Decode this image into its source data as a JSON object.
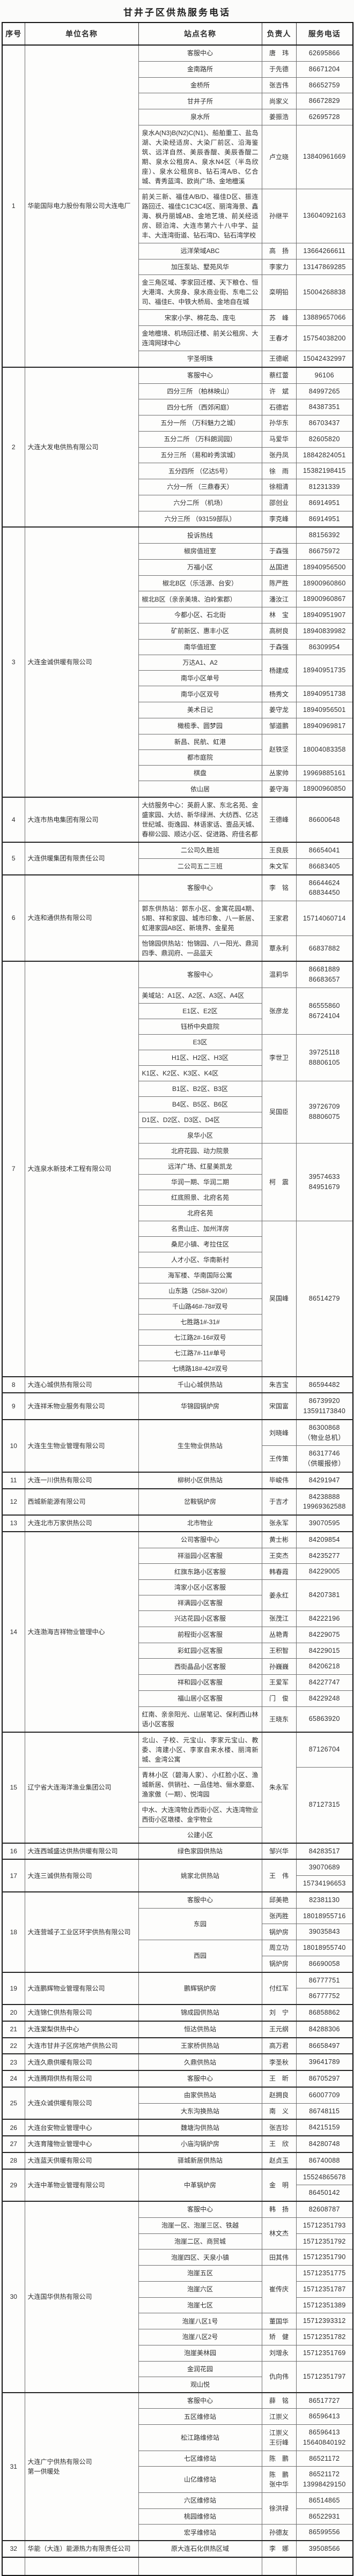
{
  "title": "甘井子区供热服务电话",
  "table": {
    "headers": [
      "序号",
      "单位名称",
      "站点名称",
      "负责人",
      "服务电话"
    ],
    "companies": [
      {
        "no": "1",
        "name": "华能国际电力股份有限公司大连电厂",
        "lines": [
          {
            "station": "客服中心",
            "person": "唐　玮",
            "phone": "62695866"
          },
          {
            "station": "金南路所",
            "person": "于先德",
            "phone": "86671204"
          },
          {
            "station": "金桥所",
            "person": "张吉伟",
            "phone": "86652759"
          },
          {
            "station": "甘井子所",
            "person": "尚家义",
            "phone": "86672829"
          },
          {
            "station": "泉水所",
            "person": "姜振浩",
            "phone": "62695728"
          },
          {
            "station": "泉水A(N3)B(N2)C(N1)、船舶重工、盐岛湖、大染经适房、大染厂前区、沿海鉴筑、远洋自然、美辰香醍、美辰香醍二期、泉水公租房A、泉水N4区（半岛欣座）、泉水公租房B、钻石湾A/B、亿合城、青秀蓝湾、欧尚广场、金地檀溪",
            "person": "卢立晓",
            "phone": "13840961669"
          },
          {
            "station": "前关三新、福佳A/B/D、福佳D区、振连路回迁、福佳C1C3C4区、丽湾海景、鑫海、枫丹丽城AB、金地艺境、前关经适房、颐泊湾、大连市第六十八中学、益丰、大连湾街道、钻石湾D、钻石湾学校",
            "person": "孙继平",
            "phone": "13604092163"
          },
          {
            "station": "远洋荣域ABC",
            "person": "高　扬",
            "phone": "13664266611"
          },
          {
            "station": "加压泵站、墅苑风华",
            "person": "李家力",
            "phone": "13147869285"
          },
          {
            "station": "金三角区域、李家回迁楼、天下粮仓、恒大港湾、大房身、泉水商业街、东电二公司、福佳E、中铁大桥局、金地自在城",
            "person": "栾明铅",
            "phone": "15004268838"
          },
          {
            "station": "宋家小学、棉花岛、庞屯",
            "person": "苏　峰",
            "phone": "13889657066"
          },
          {
            "station": "金地檀境、机场回迁楼、前关公租房、大连湾网球中心",
            "person": "王春才",
            "phone": "15754038200"
          },
          {
            "station": "宇圣明珠",
            "person": "王德岷",
            "phone": "15042432997"
          }
        ]
      },
      {
        "no": "2",
        "name": "大连大发电供热有限公司",
        "lines": [
          {
            "station": "客服中心",
            "person": "蔡红蕾",
            "phone": "96106"
          },
          {
            "station": "四分三所 （柏林映山）",
            "person": "许　斌",
            "phone": "84997265"
          },
          {
            "station": "四分七所 （西郊闲庭）",
            "person": "石德岩",
            "phone": "84387351"
          },
          {
            "station": "五分一所 （万科魅力之城）",
            "person": "孙华东",
            "phone": "86703437"
          },
          {
            "station": "五分二所 （万科朗润园）",
            "person": "马爱华",
            "phone": "82605820"
          },
          {
            "station": "五分三所 （易和岭秀滨城）",
            "person": "张丹凤",
            "phone": "18842824051"
          },
          {
            "station": "五分四所 （亿达5号）",
            "person": "徐　雨",
            "phone": "15382198415"
          },
          {
            "station": "六分一所 （三鼎春天）",
            "person": "徐相清",
            "phone": "81231339"
          },
          {
            "station": "六分二所 （机场）",
            "person": "邵创业",
            "phone": "86914951"
          },
          {
            "station": "六分三所 （93159部队）",
            "person": "李克峰",
            "phone": "86914951"
          }
        ]
      },
      {
        "no": "3",
        "name": "大连金诚供暖有限公司",
        "lines": [
          {
            "station": "投诉热线",
            "person": "",
            "phone": "88156392"
          },
          {
            "station": "椒房值班室",
            "person": "于森强",
            "phone": "86675972"
          },
          {
            "station": "万福小区",
            "person": "丛国进",
            "phone": "18940956500"
          },
          {
            "station": "椒北B区（乐活源、台安）",
            "person": "陈严胜",
            "phone": "18900960860"
          },
          {
            "station": "椒北B区（亲亲美境、泊岭紫郡）",
            "person": "潘汝江",
            "phone": "18900960867"
          },
          {
            "station": "今都小区、石北街",
            "person": "林　宝",
            "phone": "18940951907"
          },
          {
            "station": "矿前新区、惠丰小区",
            "person": "高树良",
            "phone": "18940839982"
          },
          {
            "station": "南华值班室",
            "person": "于森强",
            "phone": "86309954"
          },
          {
            "station": "万达A1、A2",
            "person": "杨建成",
            "pspan": 2,
            "phone": "18940951735",
            "tspan": 2
          },
          {
            "station": "南华小区单号"
          },
          {
            "station": "南华小区双号",
            "person": "杨秀文",
            "phone": "18940951738"
          },
          {
            "station": "美术日记",
            "person": "姜守龙",
            "phone": "18940956501"
          },
          {
            "station": "橄榄季、圆梦园",
            "person": "邹道鹏",
            "phone": "18940969817"
          },
          {
            "station": "新昌、民航、虹港",
            "person": "赵铁坚",
            "pspan": 2,
            "phone": "18004083358",
            "tspan": 2
          },
          {
            "station": "都市庭院"
          },
          {
            "station": "棋盘",
            "person": "丛家帅",
            "phone": "19969885161"
          },
          {
            "station": "依山居",
            "person": "姜守海",
            "phone": "18900960850"
          }
        ]
      },
      {
        "no": "4",
        "name": "大连市热电集团有限公司",
        "lines": [
          {
            "station": "大纺服务中心：英蔚人家、东北名苑、金盛家园、大纺、新华绿洲、大纺西、亿达世纪城、街逸园、林语家话、壹品天城、春柳公园、顺达小区、促进路、府佳名都",
            "person": "王德峰",
            "phone": "86600648"
          }
        ]
      },
      {
        "no": "5",
        "name": "大连供暖集团有限责任公司",
        "lines": [
          {
            "station": "二公司久胜班",
            "person": "王良辰",
            "phone": "86654041"
          },
          {
            "station": "二公司五二三班",
            "person": "朱文军",
            "phone": "86683405"
          }
        ]
      },
      {
        "no": "6",
        "name": "大连和通供热有限公司",
        "lines": [
          {
            "station": "客服中心",
            "person": "李　铭",
            "phone": "86644624\n68834450"
          },
          {
            "station": "郭东供热站：郭东小区、金寓花园4期、5期、祥和家园、城市印象、八一新居、虹港家园AB区、新境界、金星苑",
            "person": "王家君",
            "phone": "15714060714"
          },
          {
            "station": "怡锦园供热站：怡锦园、八一阳光、鼎润四季、鼎润府、一品蓝天",
            "person": "覃永利",
            "phone": "66837882"
          }
        ]
      },
      {
        "no": "7",
        "name": "大连泉水新技术工程有限公司",
        "lines": [
          {
            "station": "客服中心",
            "person": "温莉华",
            "phone": "86681889\n86683657"
          },
          {
            "station": "美域站：A1区、A2区、A3区、A4区",
            "person": "张彦龙",
            "pspan": 3,
            "phone": "86555860\n86724104",
            "tspan": 3
          },
          {
            "station": "E1区、E2区"
          },
          {
            "station": "钰桥中央庭院"
          },
          {
            "station": "E3区",
            "person": "李世卫",
            "pspan": 3,
            "phone": "39725118\n88806105",
            "tspan": 3
          },
          {
            "station": "H1区、H2区、H3区"
          },
          {
            "station": "K1区、K2区、K3区、K4区"
          },
          {
            "station": "B1区、B2区、B3区",
            "person": "吴国臣",
            "pspan": 4,
            "phone": "39726709\n88806075",
            "tspan": 4
          },
          {
            "station": "B4区、B5区、B6区"
          },
          {
            "station": "D1区、D2区、D3区、D4区"
          },
          {
            "station": "泉华小区"
          },
          {
            "station": "北府花园、动力院景",
            "person": "柯　震",
            "pspan": 5,
            "phone": "39574633\n84951679",
            "tspan": 5
          },
          {
            "station": "远洋广场、红星美凯龙"
          },
          {
            "station": "华润一期、华润二期"
          },
          {
            "station": "红底照景、北府名苑"
          },
          {
            "station": "北府名苑"
          },
          {
            "station": "名贵山庄、加州洋房",
            "person": "吴国峰",
            "pspan": 10,
            "phone": "86514279",
            "tspan": 10
          },
          {
            "station": "桑尼小镇、考拉住区"
          },
          {
            "station": "人才小区、华南新村"
          },
          {
            "station": "海军楼、华南国际公寓"
          },
          {
            "station": "山东路（258#-320#）"
          },
          {
            "station": "千山路46#-78#双号"
          },
          {
            "station": "七胜路1#-31#"
          },
          {
            "station": "七江路2#-16#双号"
          },
          {
            "station": "七江路7#-11#单号"
          },
          {
            "station": "七绣路18#-42#双号"
          }
        ]
      },
      {
        "no": "8",
        "name": "大连心城供热有限公司",
        "lines": [
          {
            "station": "千山心城供热站",
            "person": "朱吉宝",
            "phone": "86594482"
          }
        ]
      },
      {
        "no": "9",
        "name": "大连祥禾物业服务有限公司",
        "lines": [
          {
            "station": "华锦园锅炉房",
            "person": "宋国富",
            "phone": "86739920\n13591173840"
          }
        ]
      },
      {
        "no": "10",
        "name": "大连生生物业管理有限公司",
        "lines": [
          {
            "station": "生生物业供热站",
            "sspan": 2,
            "person": "刘晓峰",
            "phone": "86300868\n（物业总机）"
          },
          {
            "person": "王传策",
            "phone": "86317746\n（供暖报修）"
          }
        ]
      },
      {
        "no": "11",
        "name": "大连一川供热有限公司",
        "lines": [
          {
            "station": "柳树小区供热站",
            "person": "毕峻伟",
            "phone": "84291947"
          }
        ]
      },
      {
        "no": "12",
        "name": "西城新能源有限公司",
        "lines": [
          {
            "station": "岔鞍锅炉房",
            "person": "于吉才",
            "phone": "84238888\n19969362588"
          }
        ]
      },
      {
        "no": "13",
        "name": "大连北市万家供热公司",
        "lines": [
          {
            "station": "北市物业",
            "person": "张永军",
            "phone": "39070595"
          }
        ]
      },
      {
        "no": "14",
        "name": "大连渤海吉祥物业管理中心",
        "lines": [
          {
            "station": "公司客服中心",
            "person": "黄士彬",
            "phone": "84209854"
          },
          {
            "station": "祥溢园小区客服",
            "person": "王奕杰",
            "phone": "84235277"
          },
          {
            "station": "红旗东路小区客服",
            "person": "韩春霞",
            "phone": "84229005"
          },
          {
            "station": "湾家小区小区客服",
            "person": "姜永红",
            "pspan": 2,
            "phone": "84207381",
            "tspan": 2
          },
          {
            "station": "祥满园小区客服"
          },
          {
            "station": "兴达花园小区客服",
            "person": "张茂江",
            "phone": "84222196"
          },
          {
            "station": "前程街小区客服",
            "person": "丛艳青",
            "phone": "84229075"
          },
          {
            "station": "彩虹园小区客服",
            "person": "王积智",
            "phone": "84229015"
          },
          {
            "station": "西街晶品小区客服",
            "person": "孙巍巍",
            "phone": "84206218"
          },
          {
            "station": "祥和园小区客服",
            "person": "王爱军",
            "phone": "84227747"
          },
          {
            "station": "福山居小区客服",
            "person": "门　俊",
            "phone": "84229248"
          },
          {
            "station": "红南、亲亲阳光、山居笔记、保利西山林语小区客服",
            "person": "王晓东",
            "phone": "65863920"
          }
        ]
      },
      {
        "no": "15",
        "name": "辽宁省大连海洋渔业集团公司",
        "lines": [
          {
            "station": "北山、子校、元宝山、李家元宝山、教委、湾建小区、李家自来水楼、丽湾新城、金湾公寓",
            "person": "朱永军",
            "pspan": 4,
            "phone": "87126704"
          },
          {
            "station": "青林小区（碧海人家）、小红脸小区、渔城新居、供销社、一品佳地、俪水豪庭、渔家傲（一期）、悦湾园",
            "phone": "87127315",
            "tspan": 3
          },
          {
            "station": "中水、大连湾物业西街小区、大连湾物业西街小区墩楼、金宇物业"
          },
          {
            "station": "公建小区"
          }
        ]
      },
      {
        "no": "16",
        "name": "大连西城盛达供热供暖有限公司",
        "lines": [
          {
            "station": "绿色家园供热站",
            "person": "邹兴华",
            "phone": "84283517"
          }
        ]
      },
      {
        "no": "17",
        "name": "大连三诚供热有限公司",
        "lines": [
          {
            "station": "姚家北供热站",
            "sspan": 2,
            "person": "王　伟",
            "pspan": 2,
            "phone": "39070689"
          },
          {
            "phone": "15734196653"
          }
        ]
      },
      {
        "no": "18",
        "name": "大连营城子工业区环宇供热有限公司",
        "lines": [
          {
            "station": "客服中心",
            "person": "邱美艳",
            "phone": "82381130"
          },
          {
            "station": "东园",
            "sspan": 2,
            "person": "张丙胜",
            "phone": "18018955716"
          },
          {
            "person": "锅炉房",
            "phone": "39035843"
          },
          {
            "station": "西园",
            "sspan": 2,
            "person": "周立功",
            "phone": "18018955740"
          },
          {
            "person": "锅炉房",
            "phone": "86690058"
          }
        ]
      },
      {
        "no": "19",
        "name": "大连鹏辉物业管理有限公司",
        "lines": [
          {
            "station": "鹏辉锅炉房",
            "sspan": 2,
            "person": "付红军",
            "pspan": 2,
            "phone": "86777751"
          },
          {
            "phone": "86777752"
          }
        ]
      },
      {
        "no": "20",
        "name": "大连锦仁供热有限公司",
        "lines": [
          {
            "station": "锦成园供热站",
            "person": "刘　宁",
            "phone": "86858862"
          }
        ]
      },
      {
        "no": "21",
        "name": "大连棠梨供热中心",
        "lines": [
          {
            "station": "恒达供热站",
            "person": "王元纲",
            "phone": "84288306"
          }
        ]
      },
      {
        "no": "22",
        "name": "大连市甘井子区房地产供热公司",
        "lines": [
          {
            "station": "王家桥供热站",
            "person": "高万君",
            "phone": "86658497"
          }
        ]
      },
      {
        "no": "23",
        "name": "大连久鼎供暖有限公司",
        "lines": [
          {
            "station": "久鼎供热站",
            "person": "李圣秋",
            "phone": "39641789"
          }
        ]
      },
      {
        "no": "24",
        "name": "大连腾翔供热有限公司",
        "lines": [
          {
            "station": "客服中心",
            "person": "王　昕",
            "phone": "86705297"
          }
        ]
      },
      {
        "no": "25",
        "name": "大连众诚供暖有限公司",
        "lines": [
          {
            "station": "由家供热站",
            "person": "赵拥良",
            "phone": "66007709"
          },
          {
            "station": "大东沟换热站",
            "person": "南　义",
            "phone": "86748115"
          }
        ]
      },
      {
        "no": "26",
        "name": "大连台安物业管理中心",
        "lines": [
          {
            "station": "魏塘沟供热站",
            "person": "张吉珍",
            "phone": "84215159"
          }
        ]
      },
      {
        "no": "27",
        "name": "大连育隆物业管理中心",
        "lines": [
          {
            "station": "小庙沟锅炉房",
            "person": "王　欣",
            "phone": "84280748"
          }
        ]
      },
      {
        "no": "28",
        "name": "大连蓝天供暖有限公司",
        "lines": [
          {
            "station": "驿城新居供热站",
            "person": "赵贞玉",
            "phone": "86740088"
          }
        ]
      },
      {
        "no": "29",
        "name": "大连中革物业管理有限公司",
        "lines": [
          {
            "station": "中革锅炉房",
            "sspan": 2,
            "person": "金　明",
            "pspan": 2,
            "phone": "15524865678"
          },
          {
            "phone": "86450142"
          }
        ]
      },
      {
        "no": "30",
        "name": "大连国华供热有限公司",
        "lines": [
          {
            "station": "客服中心",
            "person": "韩　扬",
            "phone": "82608787"
          },
          {
            "station": "泡崖一区、泡崖三区、铁越",
            "person": "林文杰",
            "pspan": 2,
            "phone": "15712351793"
          },
          {
            "station": "泡崖二区、商贸城",
            "phone": "15712351792"
          },
          {
            "station": "泡崖四区、天泉小镇",
            "person": "田其伟",
            "phone": "15712351790"
          },
          {
            "station": "泡崖五区",
            "person": "崔传庆",
            "pspan": 3,
            "phone": "15712351775"
          },
          {
            "station": "泡崖六区",
            "phone": "15712351787"
          },
          {
            "station": "泡崖七区",
            "phone": "15712351389"
          },
          {
            "station": "泡崖八区1号",
            "person": "董国华",
            "phone": "15712393312"
          },
          {
            "station": "泡崖八区2号",
            "person": "矫　健",
            "phone": "15712351782"
          },
          {
            "station": "泡崖美林园",
            "person": "刘增永",
            "phone": "15712351769"
          },
          {
            "station": "金润花园",
            "person": "仇向伟",
            "pspan": 2,
            "phone": "15712351797",
            "tspan": 2
          },
          {
            "station": "观山悦"
          }
        ]
      },
      {
        "no": "31",
        "name": "大连广宁供热有限公司\n第一供暖处",
        "lines": [
          {
            "station": "客服中心",
            "person": "薛　铭",
            "phone": "86517727"
          },
          {
            "station": "五区维修站",
            "person": "江崇义",
            "phone": "86596413"
          },
          {
            "station": "松江路维修站",
            "person": "江崇义\n王衍峰",
            "phone": "86596413\n15640840192"
          },
          {
            "station": "七区维修站",
            "person": "陈　鹏",
            "phone": "86521172"
          },
          {
            "station": "山亿维修站",
            "person": "陈　鹏\n张中华",
            "phone": "86521172\n13998429150"
          },
          {
            "station": "六区维修站",
            "person": "徐洪禄",
            "pspan": 2,
            "phone": "86514865"
          },
          {
            "station": "桃园维修站",
            "phone": "86522931"
          },
          {
            "station": "宏孚维修站",
            "person": "孙德友",
            "phone": "86599556"
          }
        ]
      },
      {
        "no": "32",
        "name": "华能（大连）能源热力有限责任公司",
        "lines": [
          {
            "station": "原大连石化供热区域",
            "person": "李　娜",
            "phone": "39508566"
          }
        ]
      }
    ]
  }
}
